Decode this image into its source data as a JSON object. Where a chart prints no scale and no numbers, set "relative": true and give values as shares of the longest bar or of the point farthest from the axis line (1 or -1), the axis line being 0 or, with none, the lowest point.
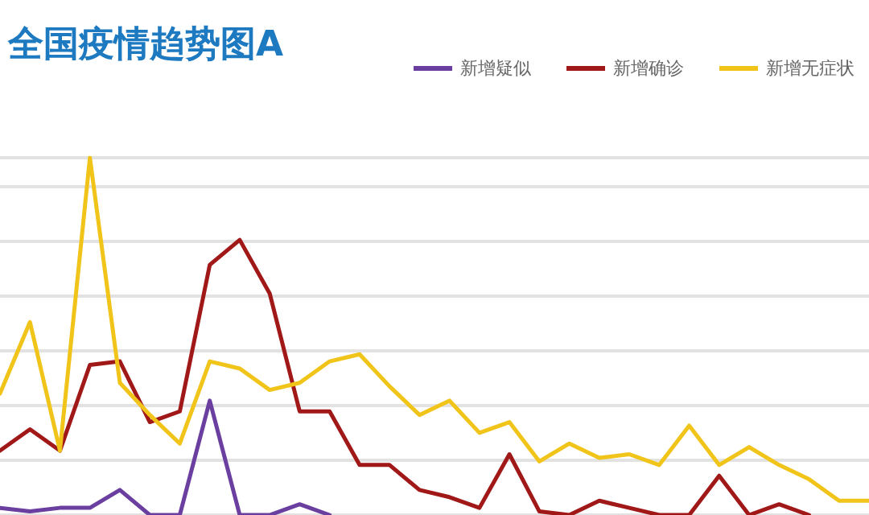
{
  "chart_data": {
    "type": "line",
    "title": "全国疫情趋势图A",
    "relative": true,
    "grid": "y",
    "legend": "top right",
    "marker": "none",
    "line_style": "solid",
    "categories": [
      null,
      null,
      null,
      null,
      null,
      null,
      null,
      null,
      null,
      null,
      null,
      null,
      null,
      null,
      null,
      null,
      null,
      null,
      null,
      null,
      null,
      null,
      null,
      null,
      null,
      null,
      null,
      null,
      null,
      null
    ],
    "series": [
      {
        "name": "新增疑似",
        "color": "#6a3fa0",
        "values": [
          0.02,
          0.01,
          0.02,
          0.02,
          0.07,
          0,
          0,
          0.32,
          0,
          0,
          0.03,
          0,
          null,
          null,
          null,
          null,
          null,
          null,
          null,
          null,
          null,
          null,
          null,
          null,
          null,
          null,
          null,
          null,
          null,
          null
        ]
      },
      {
        "name": "新增确诊",
        "color": "#a01818",
        "values": [
          0.18,
          0.24,
          0.18,
          0.42,
          0.43,
          0.26,
          0.29,
          0.7,
          0.77,
          0.62,
          0.29,
          0.29,
          0.14,
          0.14,
          0.07,
          0.05,
          0.02,
          0.17,
          0.01,
          0,
          0.04,
          0.02,
          0,
          0,
          0.11,
          0,
          0.03,
          0,
          null,
          null
        ]
      },
      {
        "name": "新增无症状",
        "color": "#f0c419",
        "values": [
          0.34,
          0.54,
          0.18,
          1,
          0.37,
          0.28,
          0.2,
          0.43,
          0.41,
          0.35,
          0.37,
          0.43,
          0.45,
          0.36,
          0.28,
          0.32,
          0.23,
          0.26,
          0.15,
          0.2,
          0.16,
          0.17,
          0.14,
          0.25,
          0.14,
          0.19,
          0.14,
          0.1,
          0.04,
          0.04
        ]
      }
    ]
  }
}
